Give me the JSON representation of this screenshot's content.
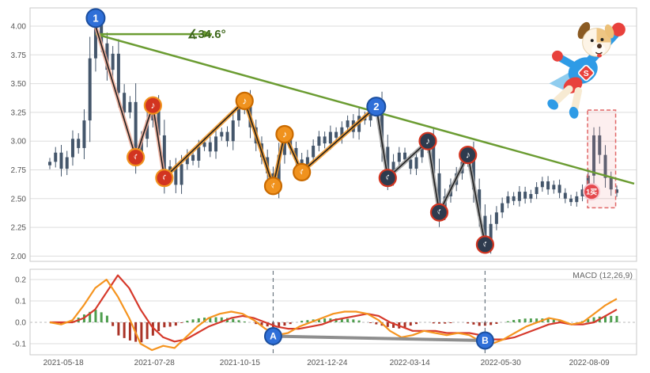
{
  "colors": {
    "candle": "#44566b",
    "grid": "#dddddd",
    "panel_border": "#c9c9c9",
    "axis_text": "#555555",
    "trend_green": "#6b9c32",
    "angle_text": "#3e671c",
    "zigzag_thin": "#1f1f1f",
    "overlay_salmon": "#eda893",
    "overlay_orange": "#f0921e",
    "overlay_gray": "#9e9e9e",
    "marker_red_fill": "#d23420",
    "marker_red_ring": "#f0921e",
    "marker_orange_fill": "#f0921e",
    "marker_orange_ring": "#c96a00",
    "marker_dark_fill": "#2e3b4e",
    "marker_dark_ring": "#d23420",
    "num_fill": "#2f6fd8",
    "num_ring": "#1b4e9e",
    "dif_orange": "#f5941f",
    "dea_red": "#d6392b",
    "hist_pos": "#4e9e4e",
    "hist_neg": "#a93226",
    "ab_line": "#8e8e8e",
    "dashed_guide": "#6a7680",
    "buy_fill": "#e5484d",
    "buy_ring": "#f7c7d0",
    "box_pink_stroke": "#e06666",
    "box_pink_fill": "rgba(244,154,154,0.16)"
  },
  "chart_data": {
    "type": "candlestick",
    "title": "",
    "angle_label": "∡34.6°",
    "macd_label": "MACD (12,26,9)",
    "x_ticks": [
      "2021-05-18",
      "2021-07-28",
      "2021-10-15",
      "2021-12-24",
      "2022-03-14",
      "2022-05-30",
      "2022-08-09"
    ],
    "price_ticks": [
      4.0,
      3.75,
      3.5,
      3.25,
      3.0,
      2.75,
      2.5,
      2.25,
      2.0
    ],
    "macd_ticks": [
      0.2,
      0.1,
      0.0,
      -0.1
    ],
    "price_ylim": [
      1.95,
      4.15
    ],
    "macd_ylim": [
      -0.16,
      0.25
    ],
    "closes": [
      2.82,
      2.9,
      2.76,
      2.86,
      3.02,
      2.94,
      3.18,
      3.72,
      4.02,
      3.85,
      3.62,
      3.76,
      3.42,
      3.25,
      3.34,
      2.88,
      3.02,
      3.18,
      3.3,
      3.05,
      2.68,
      2.78,
      2.62,
      2.8,
      2.88,
      2.83,
      2.95,
      2.99,
      2.91,
      3.04,
      3.08,
      3.0,
      3.18,
      3.28,
      3.35,
      3.12,
      2.98,
      2.86,
      2.72,
      2.61,
      2.88,
      3.05,
      2.94,
      2.84,
      2.73,
      2.86,
      2.96,
      3.04,
      2.98,
      3.08,
      3.03,
      3.12,
      3.18,
      3.08,
      3.22,
      3.18,
      3.28,
      3.3,
      2.95,
      2.68,
      2.82,
      2.9,
      2.84,
      2.76,
      2.86,
      2.94,
      3.0,
      2.72,
      2.38,
      2.52,
      2.62,
      2.72,
      2.82,
      2.88,
      2.58,
      2.35,
      2.1,
      2.28,
      2.38,
      2.46,
      2.52,
      2.48,
      2.56,
      2.5,
      2.54,
      2.6,
      2.65,
      2.58,
      2.62,
      2.55,
      2.5,
      2.47,
      2.52,
      2.58,
      2.7,
      3.05,
      2.88,
      2.68,
      2.58,
      2.55
    ],
    "wick_hi": {
      "8": 4.15,
      "95": 3.12
    },
    "wick_lo": {
      "76": 2.06
    },
    "pivots": [
      [
        8,
        4.0
      ],
      [
        15,
        2.86
      ],
      [
        18,
        3.31
      ],
      [
        20,
        2.68
      ],
      [
        34,
        3.35
      ],
      [
        39,
        2.61
      ],
      [
        41,
        3.06
      ],
      [
        44,
        2.73
      ],
      [
        57,
        3.3
      ],
      [
        59,
        2.68
      ],
      [
        66,
        3.0
      ],
      [
        68,
        2.38
      ],
      [
        73,
        2.88
      ],
      [
        76,
        2.1
      ]
    ],
    "overlay_segments": [
      {
        "color": "overlay_salmon",
        "from": 0,
        "to": 3
      },
      {
        "color": "overlay_orange",
        "from": 3,
        "to": 8
      },
      {
        "color": "overlay_gray",
        "from": 8,
        "to": 13
      }
    ],
    "note_markers": [
      {
        "i": 15,
        "price": 2.86,
        "kind": "red",
        "flip": true,
        "glyph": "♪"
      },
      {
        "i": 18,
        "price": 3.31,
        "kind": "red",
        "flip": false,
        "glyph": "♪"
      },
      {
        "i": 20,
        "price": 2.68,
        "kind": "red",
        "flip": true,
        "glyph": "♪"
      },
      {
        "i": 34,
        "price": 3.35,
        "kind": "orange",
        "flip": false,
        "glyph": "♪"
      },
      {
        "i": 39,
        "price": 2.61,
        "kind": "orange",
        "flip": true,
        "glyph": "♪"
      },
      {
        "i": 41,
        "price": 3.06,
        "kind": "orange",
        "flip": false,
        "glyph": "♪"
      },
      {
        "i": 44,
        "price": 2.73,
        "kind": "orange",
        "flip": true,
        "glyph": "♪"
      },
      {
        "i": 59,
        "price": 2.68,
        "kind": "dark",
        "flip": true,
        "glyph": "♪"
      },
      {
        "i": 66,
        "price": 3.0,
        "kind": "dark",
        "flip": false,
        "glyph": "♪"
      },
      {
        "i": 68,
        "price": 2.38,
        "kind": "dark",
        "flip": true,
        "glyph": "♪"
      },
      {
        "i": 73,
        "price": 2.88,
        "kind": "dark",
        "flip": false,
        "glyph": "♪"
      },
      {
        "i": 76,
        "price": 2.1,
        "kind": "dark",
        "flip": true,
        "glyph": "♪"
      }
    ],
    "num_markers": [
      {
        "label": "1",
        "i": 8,
        "price": 4.07
      },
      {
        "label": "2",
        "i": 57,
        "price": 3.3
      }
    ],
    "trendline": {
      "origin_i": 8,
      "origin_price": 3.93,
      "h_end_x": 268,
      "diag_end_x": 802,
      "diag_end_price": 2.63
    },
    "buy_badge": {
      "label": "1买",
      "i": 94.6,
      "price": 2.56
    },
    "pink_box": {
      "i_from": 93.9,
      "i_to": 98.8,
      "p_top": 3.27,
      "p_bot": 2.42
    },
    "macd": {
      "dif": [
        0.0,
        -0.01,
        0.01,
        0.08,
        0.16,
        0.2,
        0.12,
        0.02,
        -0.1,
        -0.13,
        -0.11,
        -0.12,
        -0.07,
        -0.02,
        0.02,
        0.04,
        0.05,
        0.04,
        0.01,
        -0.03,
        -0.06,
        -0.05,
        -0.02,
        0.0,
        0.02,
        0.04,
        0.05,
        0.05,
        0.04,
        0.01,
        -0.04,
        -0.07,
        -0.06,
        -0.04,
        -0.05,
        -0.06,
        -0.05,
        -0.06,
        -0.09,
        -0.1,
        -0.08,
        -0.05,
        -0.02,
        0.0,
        0.02,
        0.01,
        -0.01,
        0.0,
        0.04,
        0.08,
        0.11
      ],
      "dea": [
        0.0,
        0.0,
        0.0,
        0.02,
        0.06,
        0.14,
        0.22,
        0.16,
        0.06,
        -0.02,
        -0.07,
        -0.09,
        -0.08,
        -0.05,
        -0.02,
        0.0,
        0.02,
        0.03,
        0.02,
        0.0,
        -0.02,
        -0.03,
        -0.03,
        -0.02,
        -0.01,
        0.01,
        0.02,
        0.03,
        0.04,
        0.03,
        0.0,
        -0.02,
        -0.04,
        -0.04,
        -0.04,
        -0.05,
        -0.05,
        -0.05,
        -0.06,
        -0.08,
        -0.08,
        -0.07,
        -0.05,
        -0.03,
        -0.01,
        0.0,
        -0.01,
        -0.01,
        0.0,
        0.03,
        0.06
      ]
    },
    "ab_markers": [
      {
        "label": "A",
        "i": 39,
        "v": -0.065
      },
      {
        "label": "B",
        "i": 76,
        "v": -0.085
      }
    ]
  }
}
